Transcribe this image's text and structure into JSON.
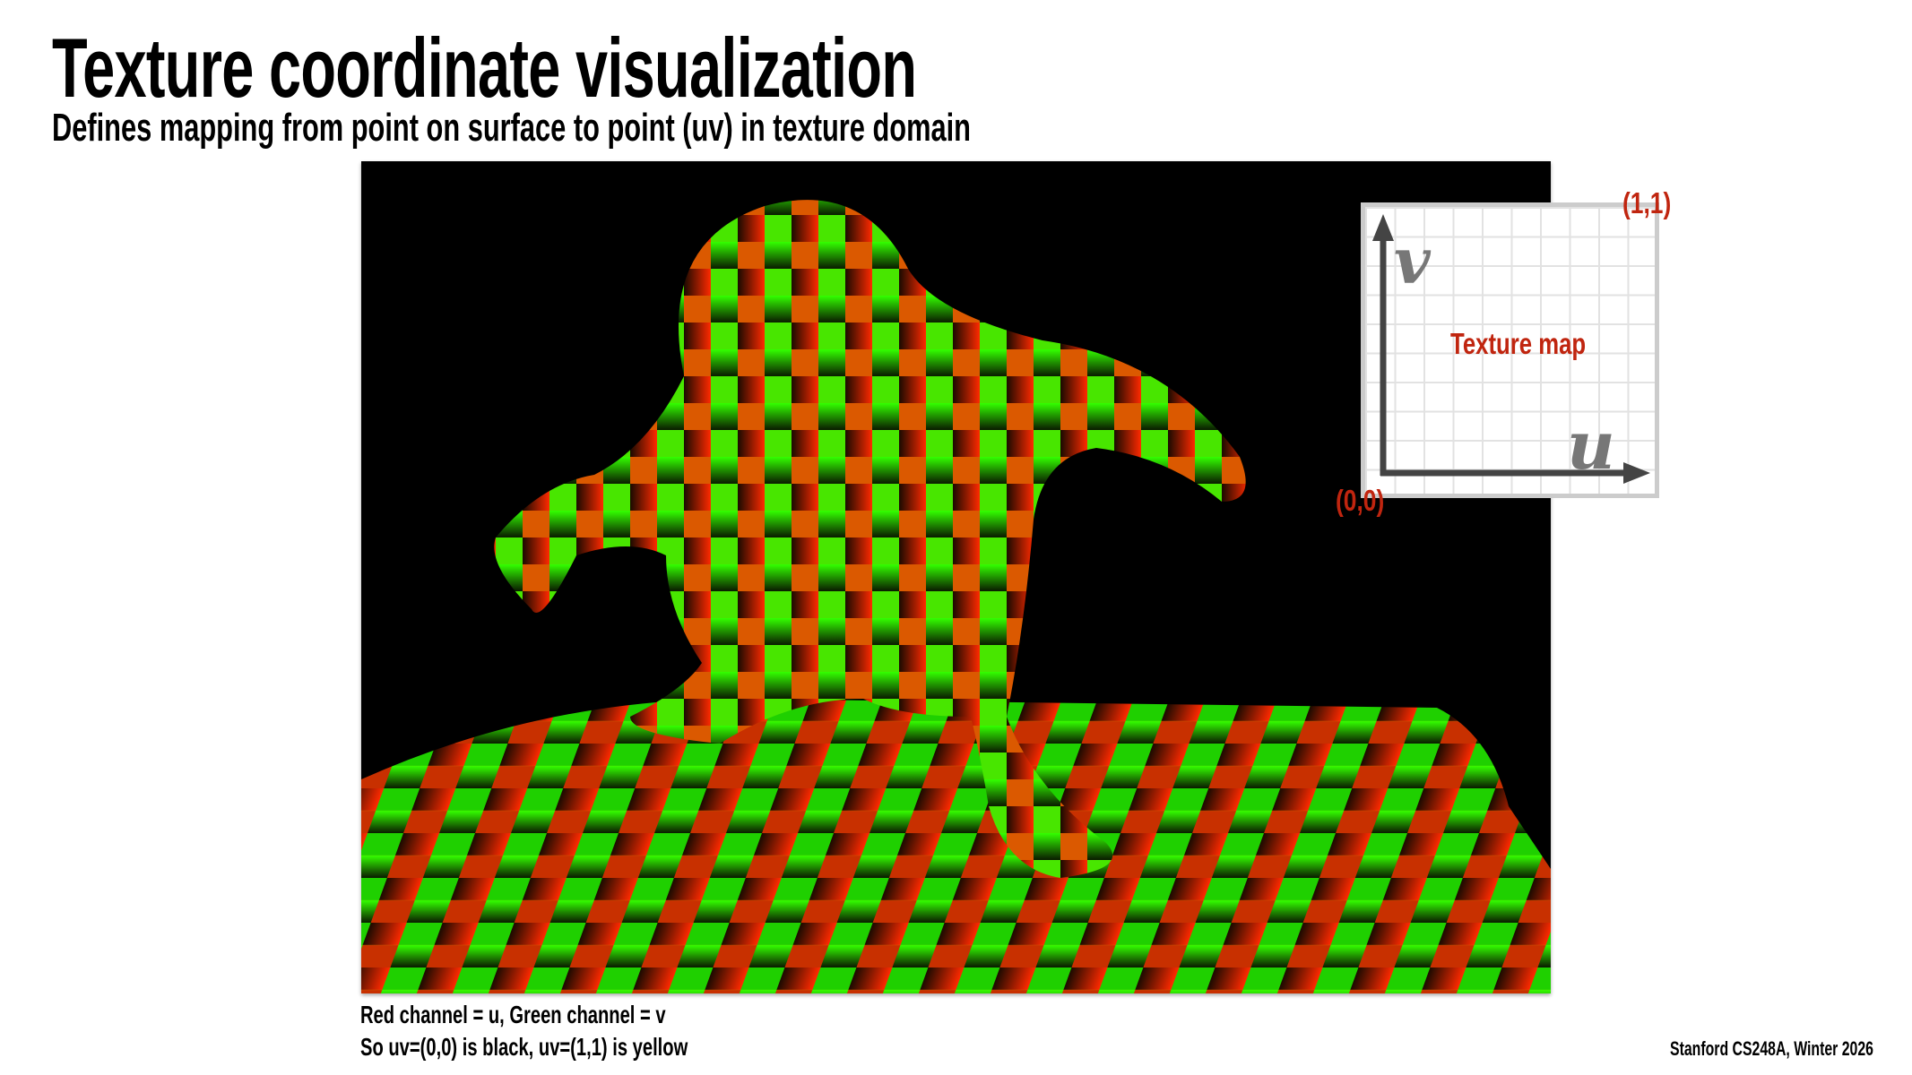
{
  "title": "Texture coordinate visualization",
  "subtitle": "Defines mapping from point on surface to point (uv) in texture domain",
  "texture_map": {
    "label": "Texture map",
    "corner_top_right": "(1,1)",
    "corner_bottom_left": "(0,0)",
    "axis_u": "u",
    "axis_v": "v"
  },
  "captions": [
    "Red channel = u, Green channel = v",
    "So uv=(0,0) is black, uv=(1,1) is yellow"
  ],
  "footer": "Stanford CS248A, Winter 2026",
  "colors": {
    "label_red": "#c0250f",
    "u_channel": "#ff2000",
    "v_channel": "#20ff00",
    "background": "#000000"
  }
}
